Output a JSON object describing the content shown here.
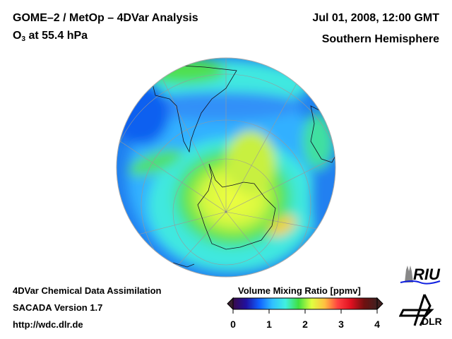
{
  "header": {
    "title_line1": "GOME–2 / MetOp – 4DVar Analysis",
    "title_species_prefix": "O",
    "title_species_subscript": "3",
    "title_species_suffix": " at 55.4 hPa",
    "datetime": "Jul 01, 2008, 12:00 GMT",
    "region": "Southern Hemisphere"
  },
  "footer": {
    "line1": "4DVar Chemical Data Assimilation",
    "line2": "SACADA Version 1.7",
    "line3": "http://wdc.dlr.de"
  },
  "colorbar": {
    "label": "Volume Mixing Ratio [ppmv]",
    "ticks": [
      "0",
      "1",
      "2",
      "3",
      "4"
    ],
    "range": [
      0,
      4
    ],
    "colors": [
      "#3a0a4a",
      "#2010a0",
      "#1060ff",
      "#30c0ff",
      "#40f0e0",
      "#40e040",
      "#e0ff40",
      "#ffc040",
      "#ff4040",
      "#e01020",
      "#701010",
      "#402020"
    ]
  },
  "logos": {
    "riu": "RIU",
    "dlr": "DLR"
  }
}
